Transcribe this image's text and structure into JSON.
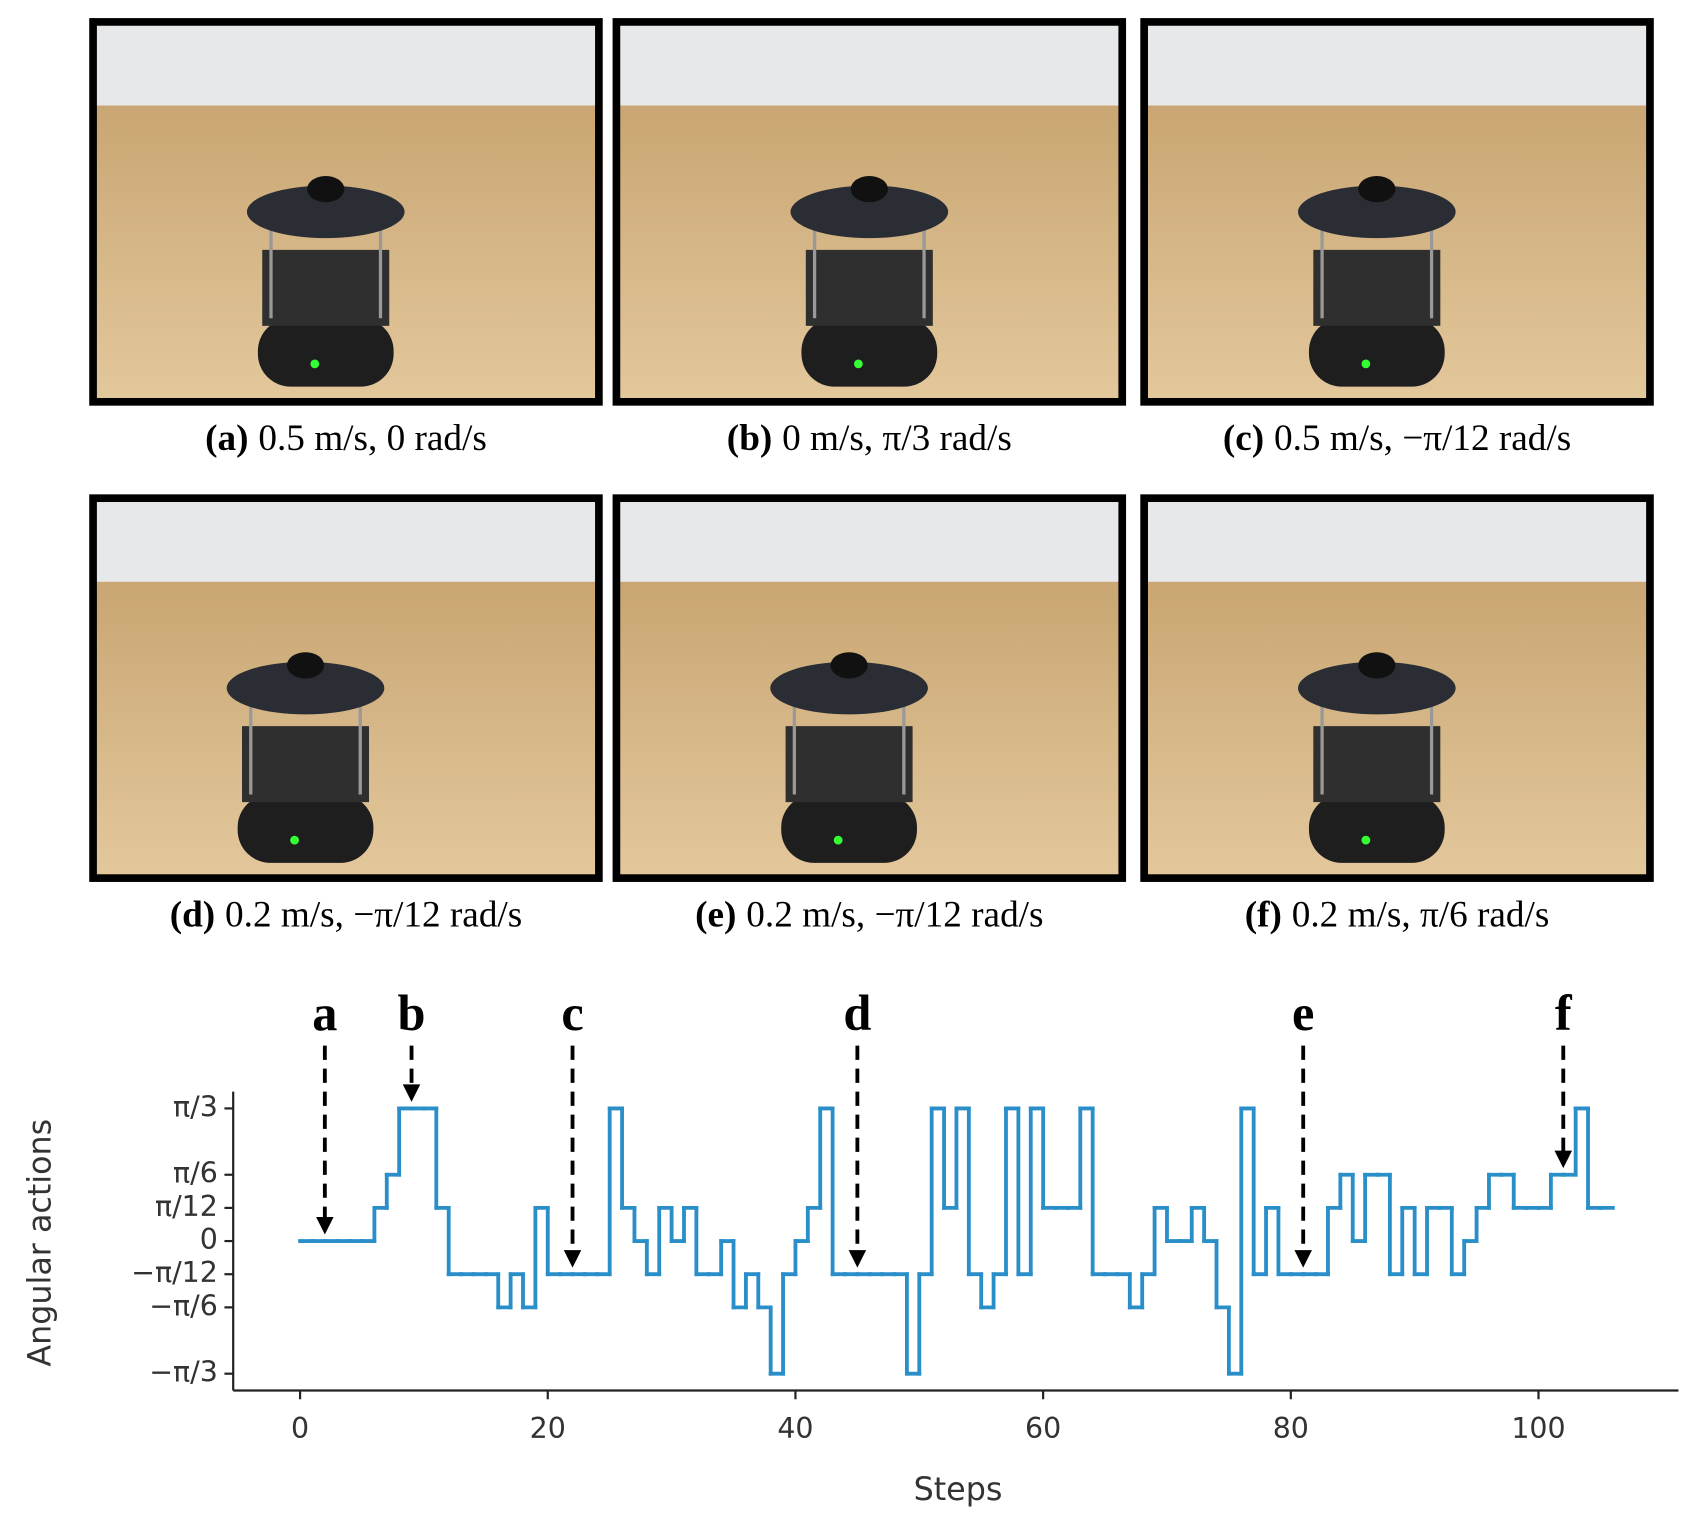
{
  "panels": [
    {
      "label": "(a)",
      "caption": "0.5 m/s, 0 rad/s"
    },
    {
      "label": "(b)",
      "caption": "0 m/s, π/3 rad/s"
    },
    {
      "label": "(c)",
      "caption": "0.5 m/s, −π/12 rad/s"
    },
    {
      "label": "(d)",
      "caption": "0.2 m/s, −π/12 rad/s"
    },
    {
      "label": "(e)",
      "caption": "0.2 m/s, −π/12 rad/s"
    },
    {
      "label": "(f)",
      "caption": "0.2 m/s, π/6 rad/s"
    }
  ],
  "chart_data": {
    "type": "step",
    "xlabel": "Steps",
    "ylabel": "Angular actions",
    "xlim": [
      -5.4,
      111.3
    ],
    "xticks": [
      0,
      20,
      40,
      60,
      80,
      100
    ],
    "ylim": [
      -1.18,
      1.18
    ],
    "yticks": [
      {
        "value": -1.0472,
        "label": "−π/3"
      },
      {
        "value": -0.5236,
        "label": "−π/6"
      },
      {
        "value": -0.2618,
        "label": "−π/12"
      },
      0,
      {
        "value": 0.2618,
        "label": "π/12"
      },
      {
        "value": 0.5236,
        "label": "π/6"
      },
      {
        "value": 1.0472,
        "label": "π/3"
      }
    ],
    "color": "#2a8fc9",
    "x": [
      0,
      1,
      2,
      3,
      4,
      5,
      6,
      7,
      8,
      9,
      10,
      11,
      12,
      13,
      14,
      15,
      16,
      17,
      18,
      19,
      20,
      21,
      22,
      23,
      24,
      25,
      26,
      27,
      28,
      29,
      30,
      31,
      32,
      33,
      34,
      35,
      36,
      37,
      38,
      39,
      40,
      41,
      42,
      43,
      44,
      45,
      46,
      47,
      48,
      49,
      50,
      51,
      52,
      53,
      54,
      55,
      56,
      57,
      58,
      59,
      60,
      61,
      62,
      63,
      64,
      65,
      66,
      67,
      68,
      69,
      70,
      71,
      72,
      73,
      74,
      75,
      76,
      77,
      78,
      79,
      80,
      81,
      82,
      83,
      84,
      85,
      86,
      87,
      88,
      89,
      90,
      91,
      92,
      93,
      94,
      95,
      96,
      97,
      98,
      99,
      100,
      101,
      102,
      103,
      104,
      105
    ],
    "values": [
      0,
      0,
      0,
      0,
      0,
      0,
      0.2618,
      0.5236,
      1.0472,
      1.0472,
      1.0472,
      0.2618,
      -0.2618,
      -0.2618,
      -0.2618,
      -0.2618,
      -0.5236,
      -0.2618,
      -0.5236,
      0.2618,
      -0.2618,
      -0.2618,
      -0.2618,
      -0.2618,
      -0.2618,
      1.0472,
      0.2618,
      0,
      -0.2618,
      0.2618,
      0,
      0.2618,
      -0.2618,
      -0.2618,
      0,
      -0.5236,
      -0.2618,
      -0.5236,
      -1.0472,
      -0.2618,
      0,
      0.2618,
      1.0472,
      -0.2618,
      -0.2618,
      -0.2618,
      -0.2618,
      -0.2618,
      -0.2618,
      -1.0472,
      -0.2618,
      1.0472,
      0.2618,
      1.0472,
      -0.2618,
      -0.5236,
      -0.2618,
      1.0472,
      -0.2618,
      1.0472,
      0.2618,
      0.2618,
      0.2618,
      1.0472,
      -0.2618,
      -0.2618,
      -0.2618,
      -0.5236,
      -0.2618,
      0.2618,
      0,
      0,
      0.2618,
      0,
      -0.5236,
      -1.0472,
      1.0472,
      -0.2618,
      0.2618,
      -0.2618,
      -0.2618,
      -0.2618,
      -0.2618,
      0.2618,
      0.5236,
      0,
      0.5236,
      0.5236,
      -0.2618,
      0.2618,
      -0.2618,
      0.2618,
      0.2618,
      -0.2618,
      0,
      0.2618,
      0.5236,
      0.5236,
      0.2618,
      0.2618,
      0.2618,
      0.5236,
      0.5236,
      1.0472,
      0.2618,
      0.2618
    ],
    "annotations": [
      {
        "text": "a",
        "x": 2,
        "y": 0
      },
      {
        "text": "b",
        "x": 9,
        "y": 1.0472
      },
      {
        "text": "c",
        "x": 22,
        "y": -0.2618
      },
      {
        "text": "d",
        "x": 45,
        "y": -0.2618
      },
      {
        "text": "e",
        "x": 81,
        "y": -0.2618
      },
      {
        "text": "f",
        "x": 102,
        "y": 0.5236
      }
    ]
  }
}
